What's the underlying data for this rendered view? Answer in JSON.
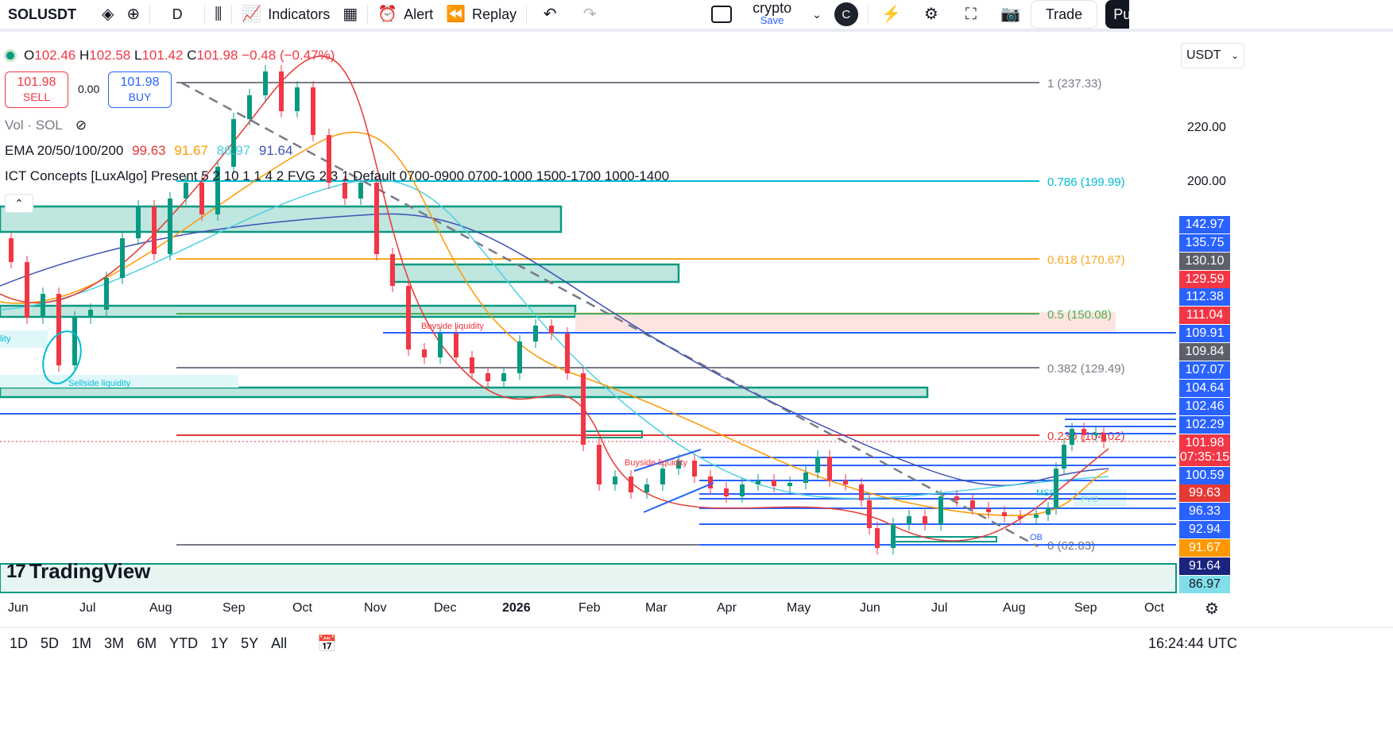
{
  "toolbar": {
    "symbol": "SOLUSDT",
    "interval": "D",
    "indicators": "Indicators",
    "alert": "Alert",
    "replay": "Replay",
    "layout_name": "crypto",
    "save": "Save",
    "avatar_letter": "C",
    "trade": "Trade",
    "publish": "Pu"
  },
  "legend": {
    "o_label": "O",
    "o_value": "102.46",
    "h_label": "H",
    "h_value": "102.58",
    "l_label": "L",
    "l_value": "101.42",
    "c_label": "C",
    "c_value": "101.98",
    "change": "−0.48 (−0.47%)",
    "sell_price": "101.98",
    "sell_label": "SELL",
    "spread": "0.00",
    "buy_price": "101.98",
    "buy_label": "BUY",
    "volume": "Vol · SOL",
    "ema_title": "EMA 20/50/100/200",
    "ema_values": [
      "99.63",
      "91.67",
      "86.97",
      "91.64"
    ],
    "ema_colors": [
      "#e53935",
      "#ff9800",
      "#4dd0e1",
      "#3f51b5"
    ],
    "ict": "ICT Concepts [LuxAlgo] Present 5 2 10 1 1 4 2 FVG 2 3 1 Default 0700-0900 0700-1000 1500-1700 1000-1400"
  },
  "currency": "USDT",
  "brand": "TradingView",
  "price_axis": {
    "grid": [
      "220.00",
      "200.00"
    ],
    "badges": [
      {
        "value": "142.97",
        "color": "#2962ff"
      },
      {
        "value": "135.75",
        "color": "#2962ff"
      },
      {
        "value": "130.10",
        "color": "#5d606b"
      },
      {
        "value": "129.59",
        "color": "#f23645"
      },
      {
        "value": "112.38",
        "color": "#2962ff"
      },
      {
        "value": "111.04",
        "color": "#f23645"
      },
      {
        "value": "109.91",
        "color": "#2962ff"
      },
      {
        "value": "109.84",
        "color": "#5d606b"
      },
      {
        "value": "107.07",
        "color": "#2962ff"
      },
      {
        "value": "104.64",
        "color": "#2962ff"
      },
      {
        "value": "102.46",
        "color": "#2962ff"
      },
      {
        "value": "102.29",
        "color": "#2962ff"
      },
      {
        "value": "101.98",
        "color": "#f23645"
      },
      {
        "value": "100.59",
        "color": "#2962ff"
      },
      {
        "value": "99.63",
        "color": "#e53935"
      },
      {
        "value": "96.33",
        "color": "#2962ff"
      },
      {
        "value": "92.94",
        "color": "#2962ff"
      },
      {
        "value": "91.67",
        "color": "#ff9800"
      },
      {
        "value": "91.64",
        "color": "#1a237e"
      },
      {
        "value": "86.97",
        "color": "#80deea"
      }
    ],
    "countdown": "07:35:15"
  },
  "fib_labels": [
    "1 (237.33)",
    "0.786 (199.99)",
    "0.618 (170.67)",
    "0.5 (150.08)",
    "0.382 (129.49)",
    "0.236 (104.02)",
    "0 (62.83)"
  ],
  "annotations": {
    "buyside_1": "Buyside liquidity",
    "buyside_2": "Buyside liquidity",
    "sellside": "Sellside liquidity",
    "liquidity_left": "lity",
    "mss": "MSS",
    "fvg": "FVG",
    "ob": "OB"
  },
  "time_axis": [
    "Jun",
    "Jul",
    "Aug",
    "Sep",
    "Oct",
    "Nov",
    "Dec",
    "2026",
    "Feb",
    "Mar",
    "Apr",
    "May",
    "Jun",
    "Jul",
    "Aug",
    "Sep",
    "Oct"
  ],
  "ranges": [
    "1D",
    "5D",
    "1M",
    "3M",
    "6M",
    "YTD",
    "1Y",
    "5Y",
    "All"
  ],
  "utc_time": "16:24:44 UTC"
}
